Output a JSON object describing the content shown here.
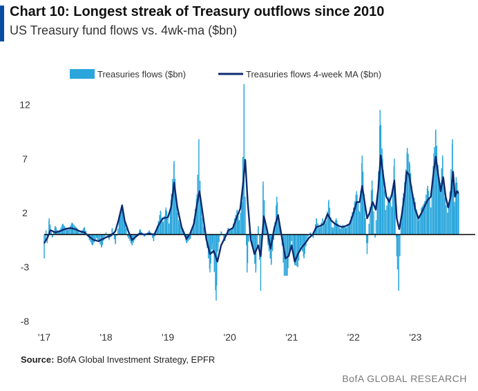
{
  "header": {
    "title": "Chart 10: Longest streak of Treasury outflows since 2010",
    "subtitle": "US Treasury fund flows vs. 4wk-ma ($bn)"
  },
  "footer": {
    "source_label": "Source:",
    "source_text": "BofA Global Investment Strategy, EPFR",
    "brand": "BofA GLOBAL RESEARCH"
  },
  "colors": {
    "bar": "#2aa6dc",
    "line": "#0c2a6e",
    "zero_line": "#000000",
    "accent": "#0a4ea3"
  },
  "chart_data": {
    "type": "bar+line",
    "title": "Chart 10: Longest streak of Treasury outflows since 2010",
    "subtitle": "US Treasury fund flows vs. 4wk-ma ($bn)",
    "y_ticks": [
      "12",
      "7",
      "2",
      "-3",
      "-8"
    ],
    "y_tick_values": [
      12,
      7,
      2,
      -3,
      -8
    ],
    "ylim": [
      -8,
      14
    ],
    "x_ticks": [
      "'17",
      "'18",
      "'19",
      "'20",
      "'21",
      "'22",
      "'23"
    ],
    "x_tick_values": [
      2017,
      2018,
      2019,
      2020,
      2021,
      2022,
      2023
    ],
    "xlim": [
      2017,
      2023.7
    ],
    "legend": [
      {
        "name": "Treasuries flows ($bn)",
        "kind": "bar"
      },
      {
        "name": "Treasuries flows 4-week MA ($bn)",
        "kind": "line"
      }
    ],
    "series": [
      {
        "name": "Treasuries flows ($bn)",
        "kind": "bar",
        "anchors": [
          [
            2017.0,
            -2.2
          ],
          [
            2017.03,
            0.4
          ],
          [
            2017.05,
            -0.8
          ],
          [
            2017.08,
            1.5
          ],
          [
            2017.13,
            -0.3
          ],
          [
            2017.18,
            0.8
          ],
          [
            2017.23,
            0.2
          ],
          [
            2017.3,
            1.0
          ],
          [
            2017.38,
            0.4
          ],
          [
            2017.45,
            1.1
          ],
          [
            2017.53,
            0.6
          ],
          [
            2017.58,
            0.1
          ],
          [
            2017.65,
            0.7
          ],
          [
            2017.73,
            -0.5
          ],
          [
            2017.78,
            -1.0
          ],
          [
            2017.85,
            -0.3
          ],
          [
            2017.93,
            -1.2
          ],
          [
            2018.0,
            0.2
          ],
          [
            2018.05,
            -0.5
          ],
          [
            2018.1,
            0.6
          ],
          [
            2018.15,
            -0.9
          ],
          [
            2018.22,
            1.5
          ],
          [
            2018.26,
            2.7
          ],
          [
            2018.3,
            1.5
          ],
          [
            2018.35,
            -0.2
          ],
          [
            2018.42,
            -1.0
          ],
          [
            2018.48,
            -0.3
          ],
          [
            2018.55,
            0.5
          ],
          [
            2018.62,
            -0.2
          ],
          [
            2018.7,
            0.4
          ],
          [
            2018.77,
            -0.6
          ],
          [
            2018.83,
            0.8
          ],
          [
            2018.88,
            2.2
          ],
          [
            2018.92,
            1.1
          ],
          [
            2018.97,
            2.5
          ],
          [
            2019.02,
            1.0
          ],
          [
            2019.05,
            3.2
          ],
          [
            2019.1,
            6.8
          ],
          [
            2019.14,
            2.5
          ],
          [
            2019.18,
            1.1
          ],
          [
            2019.25,
            0.2
          ],
          [
            2019.3,
            -0.8
          ],
          [
            2019.36,
            -0.4
          ],
          [
            2019.42,
            1.3
          ],
          [
            2019.47,
            3.7
          ],
          [
            2019.5,
            8.8
          ],
          [
            2019.53,
            2.8
          ],
          [
            2019.58,
            0.6
          ],
          [
            2019.63,
            -1.0
          ],
          [
            2019.68,
            -3.5
          ],
          [
            2019.72,
            -0.8
          ],
          [
            2019.78,
            -6.1
          ],
          [
            2019.81,
            -1.2
          ],
          [
            2019.86,
            0.3
          ],
          [
            2019.92,
            -0.6
          ],
          [
            2019.97,
            0.6
          ],
          [
            2020.03,
            0.4
          ],
          [
            2020.08,
            1.5
          ],
          [
            2020.12,
            2.3
          ],
          [
            2020.15,
            1.2
          ],
          [
            2020.2,
            3.0
          ],
          [
            2020.23,
            13.9
          ],
          [
            2020.25,
            3.5
          ],
          [
            2020.28,
            -3.5
          ],
          [
            2020.32,
            0.6
          ],
          [
            2020.38,
            -1.5
          ],
          [
            2020.42,
            -3.5
          ],
          [
            2020.46,
            0.8
          ],
          [
            2020.5,
            -5.2
          ],
          [
            2020.54,
            4.9
          ],
          [
            2020.58,
            1.0
          ],
          [
            2020.62,
            -1.0
          ],
          [
            2020.67,
            -2.8
          ],
          [
            2020.71,
            -0.5
          ],
          [
            2020.76,
            3.5
          ],
          [
            2020.8,
            1.2
          ],
          [
            2020.84,
            -0.5
          ],
          [
            2020.88,
            -3.8
          ],
          [
            2020.93,
            -3.8
          ],
          [
            2020.97,
            -1.5
          ],
          [
            2021.0,
            -0.6
          ],
          [
            2021.05,
            -2.8
          ],
          [
            2021.1,
            -3.0
          ],
          [
            2021.15,
            -1.0
          ],
          [
            2021.2,
            -2.2
          ],
          [
            2021.25,
            -0.4
          ],
          [
            2021.3,
            0.2
          ],
          [
            2021.35,
            -0.3
          ],
          [
            2021.4,
            1.5
          ],
          [
            2021.45,
            0.5
          ],
          [
            2021.5,
            1.5
          ],
          [
            2021.55,
            0.9
          ],
          [
            2021.6,
            3.2
          ],
          [
            2021.66,
            0.4
          ],
          [
            2021.72,
            1.5
          ],
          [
            2021.78,
            0.5
          ],
          [
            2021.83,
            0.9
          ],
          [
            2021.88,
            0.6
          ],
          [
            2021.93,
            1.0
          ],
          [
            2022.0,
            2.5
          ],
          [
            2022.05,
            4.0
          ],
          [
            2022.1,
            2.0
          ],
          [
            2022.14,
            7.3
          ],
          [
            2022.18,
            3.0
          ],
          [
            2022.22,
            -1.8
          ],
          [
            2022.25,
            1.0
          ],
          [
            2022.3,
            5.0
          ],
          [
            2022.35,
            -0.3
          ],
          [
            2022.4,
            5.0
          ],
          [
            2022.43,
            11.5
          ],
          [
            2022.47,
            7.0
          ],
          [
            2022.52,
            2.2
          ],
          [
            2022.57,
            3.5
          ],
          [
            2022.62,
            2.5
          ],
          [
            2022.66,
            7.0
          ],
          [
            2022.7,
            -2.0
          ],
          [
            2022.73,
            -5.2
          ],
          [
            2022.77,
            1.2
          ],
          [
            2022.8,
            3.4
          ],
          [
            2022.84,
            5.5
          ],
          [
            2022.87,
            8.0
          ],
          [
            2022.91,
            6.5
          ],
          [
            2022.95,
            4.0
          ],
          [
            2023.0,
            3.0
          ],
          [
            2023.05,
            1.2
          ],
          [
            2023.1,
            2.5
          ],
          [
            2023.15,
            3.0
          ],
          [
            2023.2,
            4.5
          ],
          [
            2023.25,
            2.5
          ],
          [
            2023.3,
            7.5
          ],
          [
            2023.33,
            9.7
          ],
          [
            2023.37,
            6.0
          ],
          [
            2023.4,
            4.5
          ],
          [
            2023.44,
            7.3
          ],
          [
            2023.48,
            3.4
          ],
          [
            2023.52,
            2.0
          ],
          [
            2023.56,
            4.0
          ],
          [
            2023.6,
            8.8
          ],
          [
            2023.63,
            2.6
          ],
          [
            2023.66,
            5.3
          ],
          [
            2023.7,
            3.8
          ]
        ]
      },
      {
        "name": "Treasuries flows 4-week MA ($bn)",
        "kind": "line",
        "points": [
          [
            2017.0,
            -0.8
          ],
          [
            2017.05,
            -0.3
          ],
          [
            2017.1,
            0.4
          ],
          [
            2017.18,
            0.2
          ],
          [
            2017.25,
            0.3
          ],
          [
            2017.33,
            0.5
          ],
          [
            2017.42,
            0.6
          ],
          [
            2017.5,
            0.5
          ],
          [
            2017.58,
            0.3
          ],
          [
            2017.65,
            0.2
          ],
          [
            2017.73,
            -0.2
          ],
          [
            2017.8,
            -0.5
          ],
          [
            2017.88,
            -0.6
          ],
          [
            2017.95,
            -0.4
          ],
          [
            2018.02,
            -0.2
          ],
          [
            2018.08,
            -0.1
          ],
          [
            2018.15,
            0.3
          ],
          [
            2018.2,
            1.3
          ],
          [
            2018.26,
            2.7
          ],
          [
            2018.3,
            1.3
          ],
          [
            2018.36,
            0.3
          ],
          [
            2018.42,
            -0.5
          ],
          [
            2018.48,
            -0.2
          ],
          [
            2018.55,
            0.1
          ],
          [
            2018.62,
            0.0
          ],
          [
            2018.7,
            0.1
          ],
          [
            2018.78,
            0.0
          ],
          [
            2018.85,
            0.9
          ],
          [
            2018.92,
            1.5
          ],
          [
            2019.0,
            1.6
          ],
          [
            2019.05,
            2.5
          ],
          [
            2019.1,
            4.8
          ],
          [
            2019.15,
            2.6
          ],
          [
            2019.22,
            0.7
          ],
          [
            2019.3,
            -0.4
          ],
          [
            2019.36,
            0.1
          ],
          [
            2019.42,
            1.0
          ],
          [
            2019.47,
            2.8
          ],
          [
            2019.51,
            4.0
          ],
          [
            2019.56,
            2.0
          ],
          [
            2019.62,
            -0.4
          ],
          [
            2019.68,
            -1.8
          ],
          [
            2019.74,
            -1.5
          ],
          [
            2019.8,
            -2.5
          ],
          [
            2019.86,
            -1.0
          ],
          [
            2019.92,
            -0.3
          ],
          [
            2019.98,
            0.4
          ],
          [
            2020.05,
            0.6
          ],
          [
            2020.12,
            1.7
          ],
          [
            2020.17,
            2.4
          ],
          [
            2020.22,
            5.0
          ],
          [
            2020.25,
            6.9
          ],
          [
            2020.29,
            3.0
          ],
          [
            2020.34,
            -0.5
          ],
          [
            2020.4,
            -1.8
          ],
          [
            2020.46,
            -1.0
          ],
          [
            2020.5,
            -2.0
          ],
          [
            2020.55,
            1.7
          ],
          [
            2020.6,
            0.5
          ],
          [
            2020.66,
            -1.3
          ],
          [
            2020.72,
            0.6
          ],
          [
            2020.78,
            1.8
          ],
          [
            2020.84,
            -0.2
          ],
          [
            2020.9,
            -2.2
          ],
          [
            2020.95,
            -2.0
          ],
          [
            2021.0,
            -1.0
          ],
          [
            2021.05,
            -2.5
          ],
          [
            2021.1,
            -1.8
          ],
          [
            2021.16,
            -1.2
          ],
          [
            2021.22,
            -0.8
          ],
          [
            2021.28,
            -0.3
          ],
          [
            2021.34,
            0.0
          ],
          [
            2021.4,
            0.7
          ],
          [
            2021.46,
            0.8
          ],
          [
            2021.52,
            1.0
          ],
          [
            2021.58,
            1.9
          ],
          [
            2021.64,
            1.3
          ],
          [
            2021.7,
            1.0
          ],
          [
            2021.76,
            0.8
          ],
          [
            2021.82,
            0.7
          ],
          [
            2021.88,
            0.8
          ],
          [
            2021.94,
            1.0
          ],
          [
            2022.0,
            2.0
          ],
          [
            2022.05,
            3.0
          ],
          [
            2022.1,
            3.0
          ],
          [
            2022.14,
            4.5
          ],
          [
            2022.18,
            3.0
          ],
          [
            2022.22,
            1.5
          ],
          [
            2022.26,
            2.0
          ],
          [
            2022.31,
            3.0
          ],
          [
            2022.36,
            2.3
          ],
          [
            2022.4,
            4.2
          ],
          [
            2022.44,
            7.3
          ],
          [
            2022.48,
            5.5
          ],
          [
            2022.53,
            3.5
          ],
          [
            2022.58,
            3.0
          ],
          [
            2022.62,
            3.7
          ],
          [
            2022.66,
            5.0
          ],
          [
            2022.7,
            1.5
          ],
          [
            2022.74,
            0.5
          ],
          [
            2022.78,
            1.8
          ],
          [
            2022.82,
            3.5
          ],
          [
            2022.86,
            5.8
          ],
          [
            2022.9,
            5.5
          ],
          [
            2022.95,
            3.8
          ],
          [
            2023.0,
            2.3
          ],
          [
            2023.05,
            1.5
          ],
          [
            2023.1,
            2.0
          ],
          [
            2023.15,
            2.6
          ],
          [
            2023.2,
            3.2
          ],
          [
            2023.25,
            3.5
          ],
          [
            2023.29,
            5.5
          ],
          [
            2023.33,
            7.2
          ],
          [
            2023.37,
            5.5
          ],
          [
            2023.41,
            4.0
          ],
          [
            2023.45,
            5.3
          ],
          [
            2023.49,
            3.5
          ],
          [
            2023.53,
            2.5
          ],
          [
            2023.57,
            3.5
          ],
          [
            2023.61,
            5.8
          ],
          [
            2023.64,
            3.5
          ],
          [
            2023.67,
            4.0
          ],
          [
            2023.7,
            3.8
          ]
        ]
      }
    ]
  }
}
